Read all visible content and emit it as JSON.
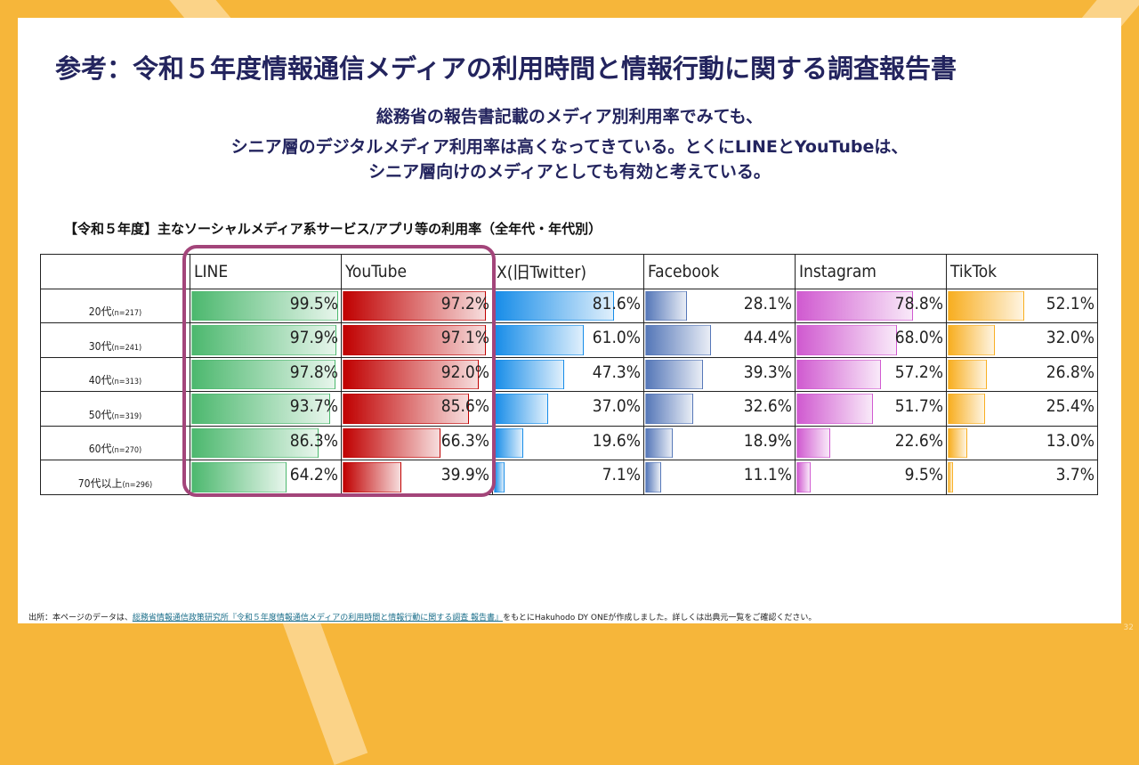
{
  "title": "参考：令和５年度情報通信メディアの利用時間と情報行動に関する調査報告書",
  "subtitle": [
    "総務省の報告書記載のメディア別利用率でみても、",
    "シニア層のデジタルメディア利用率は高くなってきている。とくにLINEとYouTubeは、",
    "シニア層向けのメディアとしても有効と考えている。"
  ],
  "chart_data": {
    "type": "table",
    "title": "【令和５年度】主なソーシャルメディア系サービス/アプリ等の利用率（全年代・年代別）",
    "categories": [
      {
        "age": "20代",
        "n": "(n=217)"
      },
      {
        "age": "30代",
        "n": "(n=241)"
      },
      {
        "age": "40代",
        "n": "(n=313)"
      },
      {
        "age": "50代",
        "n": "(n=319)"
      },
      {
        "age": "60代",
        "n": "(n=270)"
      },
      {
        "age": "70代以上",
        "n": "(n=296)"
      }
    ],
    "series": [
      {
        "name": "LINE",
        "color": "#4cb86e",
        "values": [
          99.5,
          97.9,
          97.8,
          93.7,
          86.3,
          64.2
        ]
      },
      {
        "name": "YouTube",
        "color": "#c00000",
        "values": [
          97.2,
          97.1,
          92.0,
          85.6,
          66.3,
          39.9
        ]
      },
      {
        "name": "X(旧Twitter)",
        "color": "#168ce8",
        "values": [
          81.6,
          61.0,
          47.3,
          37.0,
          19.6,
          7.1
        ]
      },
      {
        "name": "Facebook",
        "color": "#5577b8",
        "values": [
          28.1,
          44.4,
          39.3,
          32.6,
          18.9,
          11.1
        ]
      },
      {
        "name": "Instagram",
        "color": "#d05ad0",
        "values": [
          78.8,
          68.0,
          57.2,
          51.7,
          22.6,
          9.5
        ]
      },
      {
        "name": "TikTok",
        "color": "#f8ae20",
        "values": [
          52.1,
          32.0,
          26.8,
          25.4,
          13.0,
          3.7
        ]
      }
    ],
    "ylim": [
      0,
      100
    ]
  },
  "footer": {
    "prefix": "出所：本ページのデータは、",
    "link": "総務省情報通信政策研究所『令和５年度情報通信メディアの利用時間と情報行動に関する調査 報告書』",
    "suffix": "をもとにHakuhodo DY ONEが作成しました。詳しくは出典元一覧をご確認ください。"
  },
  "page_number": "32"
}
